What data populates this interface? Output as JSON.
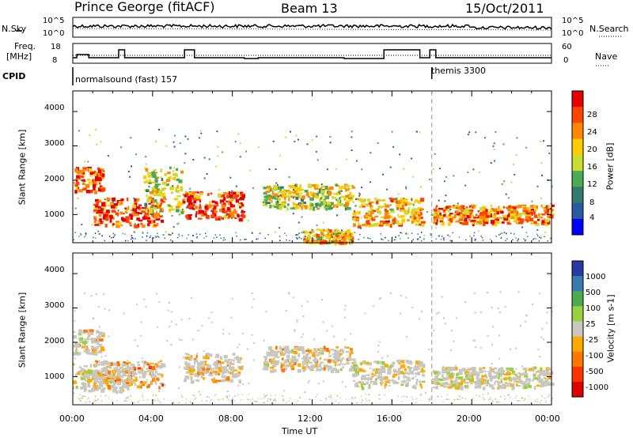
{
  "header": {
    "station": "Prince George (fitACF)",
    "beam": "Beam 13",
    "date": "15/Oct/2011"
  },
  "side_labels": {
    "nsky": "N.Sky",
    "freq_line1": "Freq.",
    "freq_line2": "[MHz]",
    "cpid": "CPID",
    "nsearch": "N.Search",
    "nave": "Nave"
  },
  "mini_axes": {
    "nsky_ticks": [
      "10^5",
      "10^0"
    ],
    "nsearch_ticks": [
      "10^5",
      "10^0"
    ],
    "freq_ticks": [
      "18",
      "8"
    ],
    "nave_ticks": [
      "60",
      "0"
    ]
  },
  "cpid_modes": [
    {
      "name": "normalsound (fast) 157",
      "start_hour": 0
    },
    {
      "name": "themis 3300",
      "start_hour": 18
    }
  ],
  "x_axis": {
    "label": "Time UT",
    "ticks": [
      "00:00",
      "04:00",
      "08:00",
      "12:00",
      "16:00",
      "20:00",
      "00:00"
    ]
  },
  "power_panel": {
    "ylabel": "Slant Range [km]",
    "yticks": [
      "4000",
      "3000",
      "2000",
      "1000"
    ],
    "colorbar_label": "Power [dB]",
    "colorbar_ticks": [
      "28",
      "24",
      "20",
      "16",
      "12",
      "8",
      "4"
    ],
    "colors": [
      "#e60000",
      "#ff4400",
      "#ff8800",
      "#ffcc00",
      "#c8dc32",
      "#4caa50",
      "#327a6e",
      "#2a5aa0",
      "#0000ff"
    ]
  },
  "velocity_panel": {
    "ylabel": "Slant Range [km]",
    "yticks": [
      "4000",
      "3000",
      "2000",
      "1000"
    ],
    "colorbar_label": "Velocity [m s-1]",
    "colorbar_ticks": [
      "1000",
      "500",
      "100",
      "25",
      "-25",
      "-100",
      "-500",
      "-1000"
    ],
    "colors": [
      "#2a3aa0",
      "#3a7ab0",
      "#4caa50",
      "#9ad040",
      "#c8c8c0",
      "#ffaa00",
      "#ff7700",
      "#ff3300",
      "#dd0000"
    ]
  },
  "chart_data": [
    {
      "type": "heatmap",
      "title": "Power",
      "xlabel": "Time UT",
      "ylabel": "Slant Range [km]",
      "xlim": [
        0,
        24
      ],
      "ylim": [
        180,
        4600
      ],
      "colorbar": {
        "label": "Power [dB]",
        "range": [
          0,
          30
        ]
      },
      "regions": [
        {
          "t0": 0.0,
          "t1": 1.5,
          "r0": 1700,
          "r1": 2400,
          "value": 24
        },
        {
          "t0": 1.0,
          "t1": 4.5,
          "r0": 700,
          "r1": 1500,
          "value": 26
        },
        {
          "t0": 3.5,
          "t1": 5.5,
          "r0": 1100,
          "r1": 2400,
          "value": 16
        },
        {
          "t0": 5.5,
          "t1": 8.5,
          "r0": 900,
          "r1": 1700,
          "value": 26
        },
        {
          "t0": 9.5,
          "t1": 14.0,
          "r0": 1200,
          "r1": 1900,
          "value": 16
        },
        {
          "t0": 11.5,
          "t1": 14.0,
          "r0": 200,
          "r1": 600,
          "value": 20
        },
        {
          "t0": 14.0,
          "t1": 17.5,
          "r0": 700,
          "r1": 1500,
          "value": 20
        },
        {
          "t0": 18.0,
          "t1": 24.0,
          "r0": 750,
          "r1": 1300,
          "value": 22
        }
      ]
    },
    {
      "type": "heatmap",
      "title": "Velocity",
      "xlabel": "Time UT",
      "ylabel": "Slant Range [km]",
      "xlim": [
        0,
        24
      ],
      "ylim": [
        180,
        4600
      ],
      "colorbar": {
        "label": "Velocity [m s-1]",
        "range": [
          -1000,
          1000
        ]
      },
      "regions": [
        {
          "t0": 0.0,
          "t1": 1.5,
          "r0": 1700,
          "r1": 2400,
          "value": -100
        },
        {
          "t0": 0.0,
          "t1": 3.0,
          "r0": 600,
          "r1": 1400,
          "value": 0
        },
        {
          "t0": 1.0,
          "t1": 4.5,
          "r0": 700,
          "r1": 1500,
          "value": -300
        },
        {
          "t0": 5.5,
          "t1": 8.5,
          "r0": 900,
          "r1": 1700,
          "value": -200
        },
        {
          "t0": 9.5,
          "t1": 14.0,
          "r0": 1200,
          "r1": 1900,
          "value": -150
        },
        {
          "t0": 14.0,
          "t1": 17.5,
          "r0": 700,
          "r1": 1500,
          "value": 0
        },
        {
          "t0": 18.0,
          "t1": 24.0,
          "r0": 700,
          "r1": 1300,
          "value": 0
        }
      ]
    }
  ]
}
